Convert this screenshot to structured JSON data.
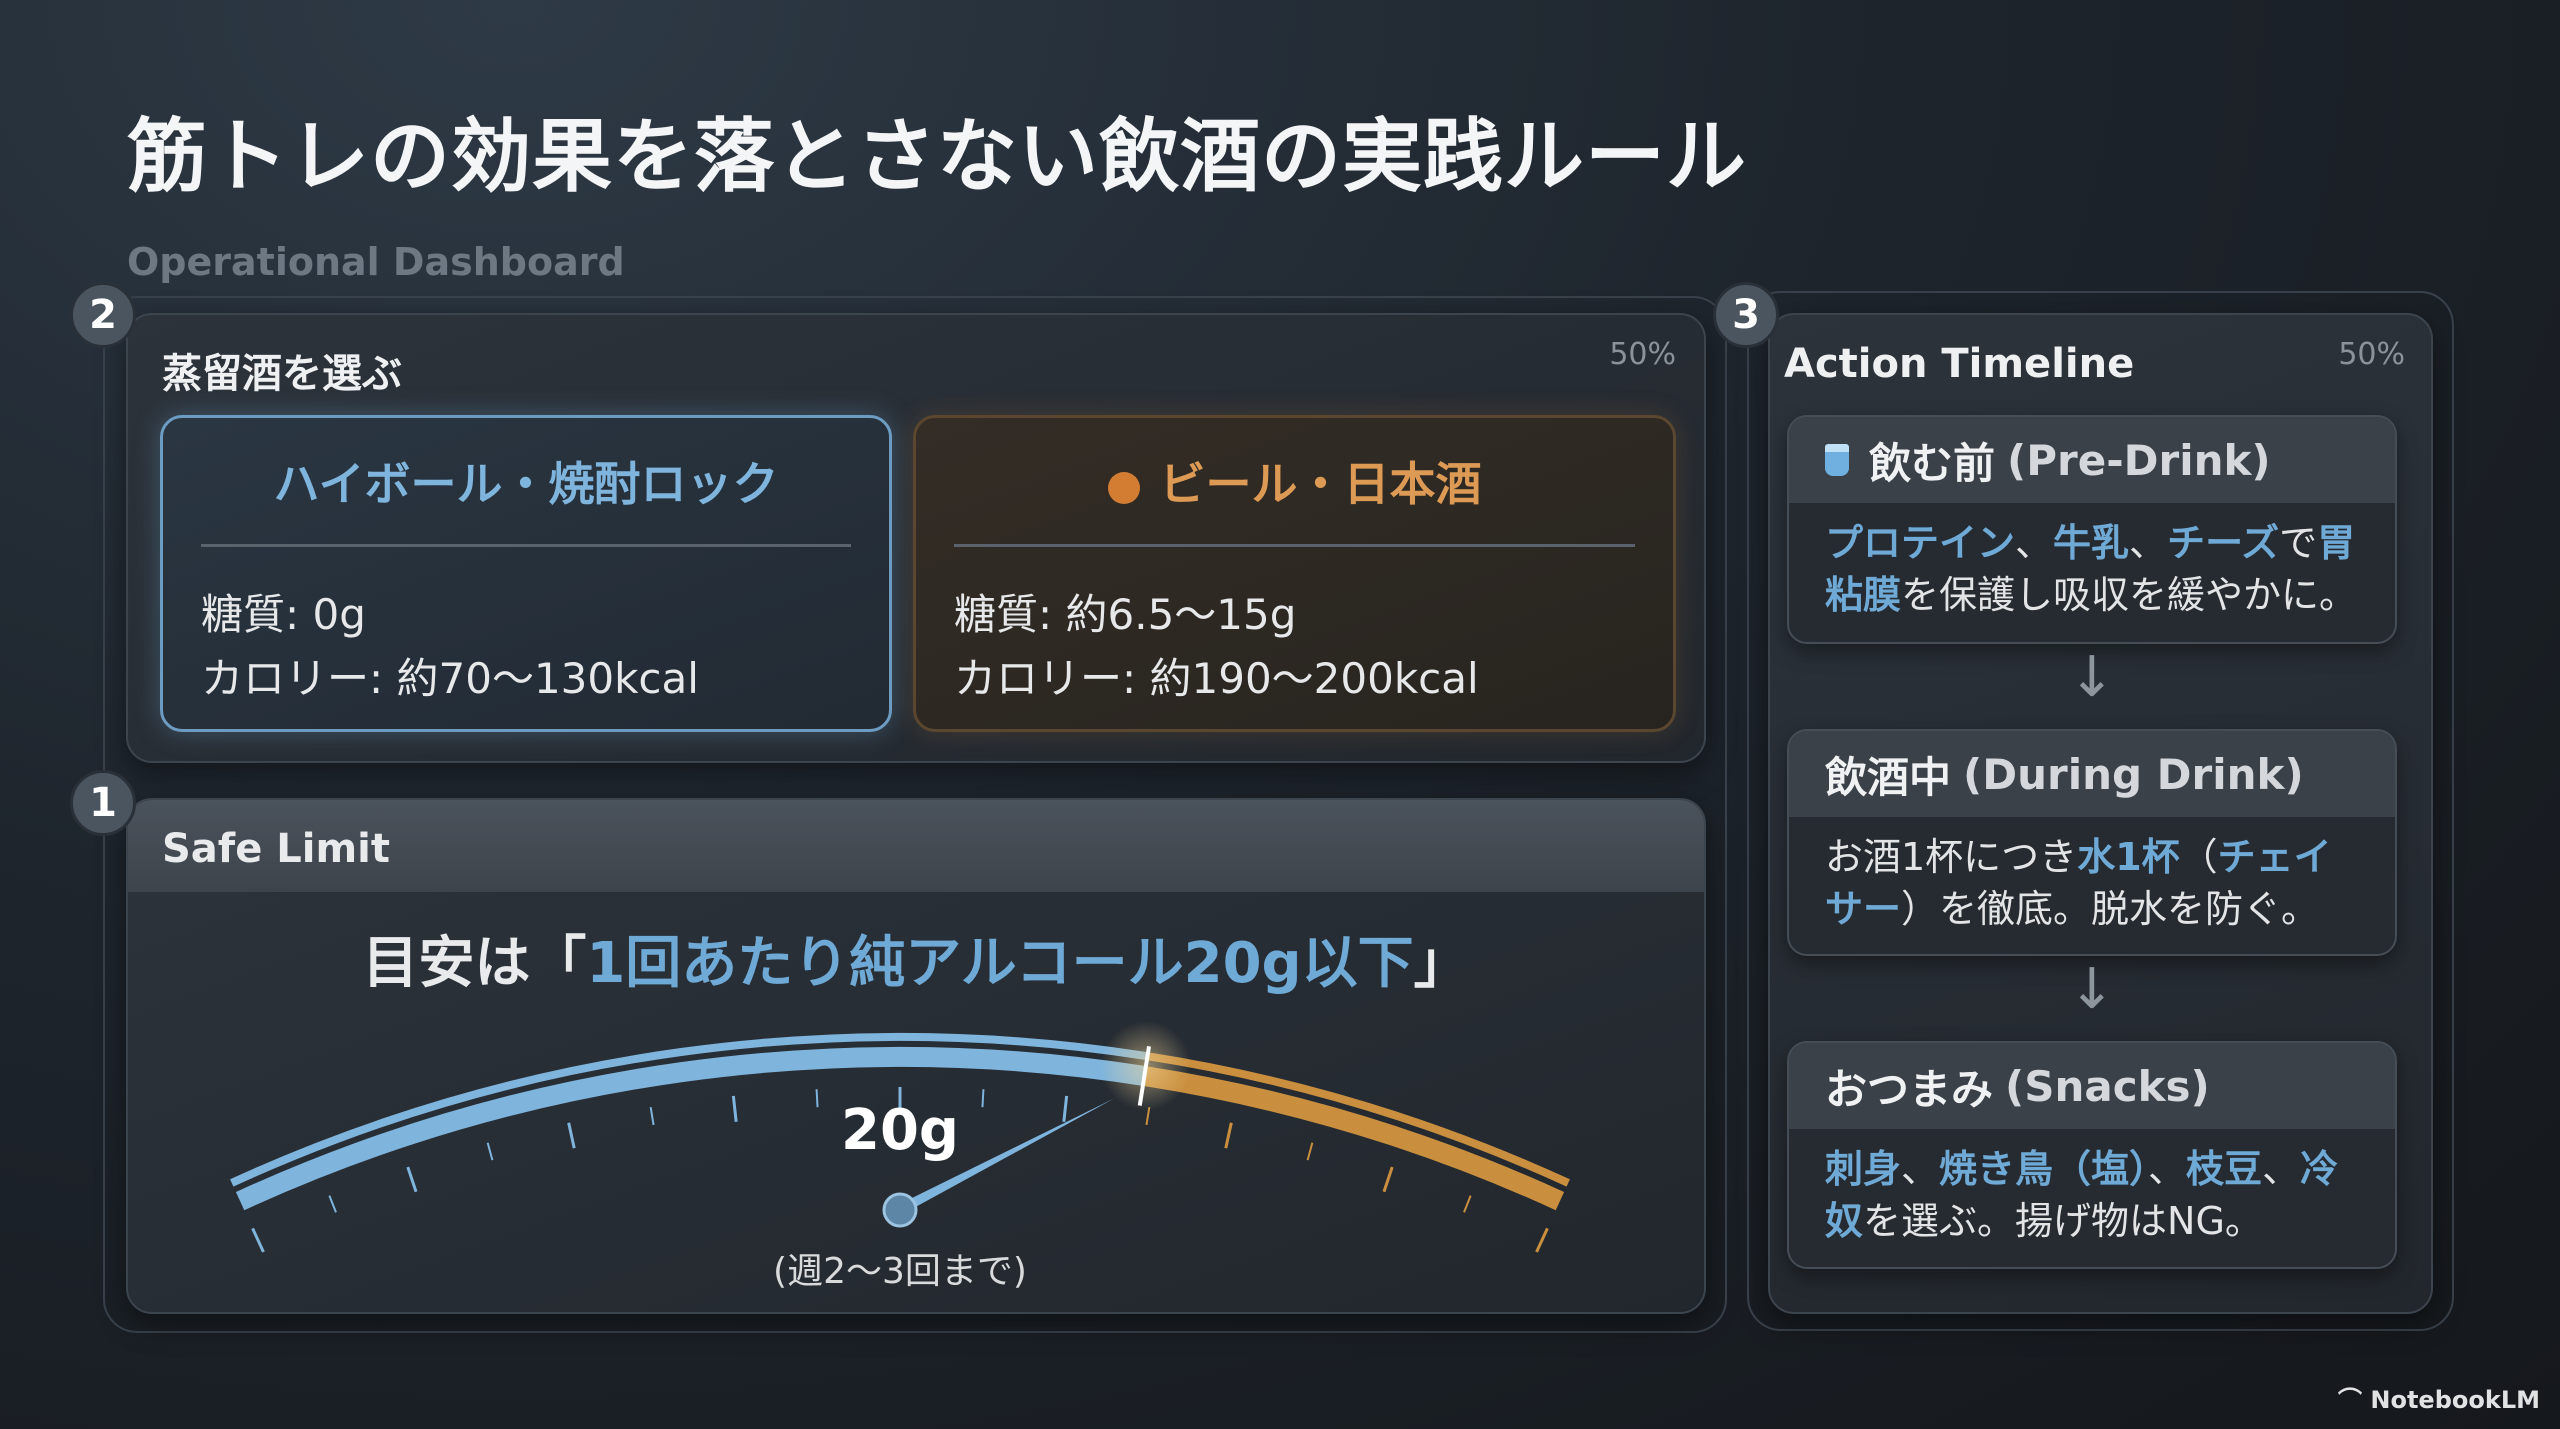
{
  "title": "筋トレの効果を落とさない飲酒の実践ルール",
  "subtitle": "Operational Dashboard",
  "panel_distilled": {
    "badge": "2",
    "title": "蒸留酒を選ぶ",
    "percent": "50%",
    "good": {
      "title": "ハイボール・焼酎ロック",
      "sugar": "糖質: 0g",
      "calories": "カロリー: 約70〜130kcal",
      "color": "#7fb4dc"
    },
    "bad": {
      "title": "ビール・日本酒",
      "sugar": "糖質: 約6.5〜15g",
      "calories": "カロリー: 約190〜200kcal",
      "color": "#dd9a55",
      "icon": "orange-dot-icon"
    }
  },
  "panel_safe": {
    "badge": "1",
    "title": "Safe Limit",
    "headline_prefix": "目安は「",
    "headline_highlight": "1回あたり純アルコール20g以下",
    "headline_suffix": "」",
    "gauge": {
      "value_label": "20g",
      "note": "(週2〜3回まで)",
      "safe_color": "#7fb4dc",
      "over_color": "#c98f3e"
    }
  },
  "panel_timeline": {
    "badge": "3",
    "title": "Action Timeline",
    "percent": "50%",
    "steps": [
      {
        "icon": "glass-icon",
        "title": "飲む前",
        "title_en": "(Pre-Drink)",
        "body": [
          "プロテイン",
          "、",
          "牛乳",
          "、",
          "チーズ",
          "で",
          "胃粘膜",
          "を保護し吸収を緩やかに。"
        ]
      },
      {
        "title": "飲酒中",
        "title_en": "(During Drink)",
        "body": [
          "お酒1杯につき",
          "水1杯",
          "（",
          "チェイサー",
          "）を徹底。脱水を防ぐ。"
        ]
      },
      {
        "title": "おつまみ",
        "title_en": "(Snacks)",
        "body": [
          "刺身",
          "、",
          "焼き鳥（塩）",
          "、",
          "枝豆",
          "、",
          "冷奴",
          "を選ぶ。揚げ物はNG。"
        ]
      }
    ]
  },
  "watermark": "NotebookLM",
  "colors": {
    "accent_blue": "#6fa9d6",
    "accent_orange": "#dd9a55"
  }
}
